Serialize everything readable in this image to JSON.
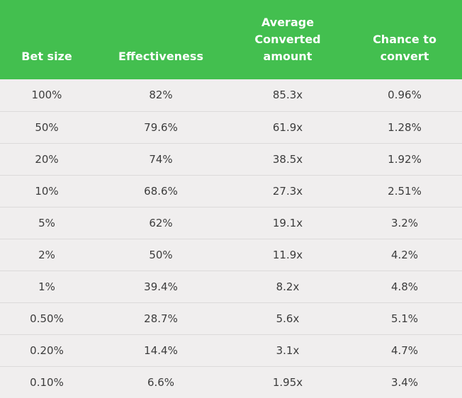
{
  "table": {
    "headers": [
      [
        "Bet size"
      ],
      [
        "Effectiveness"
      ],
      [
        "Average",
        "Converted",
        "amount"
      ],
      [
        "Chance to",
        "convert"
      ]
    ],
    "rows": [
      [
        "100%",
        "82%",
        "85.3x",
        "0.96%"
      ],
      [
        "50%",
        "79.6%",
        "61.9x",
        "1.28%"
      ],
      [
        "20%",
        "74%",
        "38.5x",
        "1.92%"
      ],
      [
        "10%",
        "68.6%",
        "27.3x",
        "2.51%"
      ],
      [
        "5%",
        "62%",
        "19.1x",
        "3.2%"
      ],
      [
        "2%",
        "50%",
        "11.9x",
        "4.2%"
      ],
      [
        "1%",
        "39.4%",
        "8.2x",
        "4.8%"
      ],
      [
        "0.50%",
        "28.7%",
        "5.6x",
        "5.1%"
      ],
      [
        "0.20%",
        "14.4%",
        "3.1x",
        "4.7%"
      ],
      [
        "0.10%",
        "6.6%",
        "1.95x",
        "3.4%"
      ]
    ]
  },
  "colors": {
    "header_background": "#43bf4f",
    "header_text": "#ffffff",
    "body_background": "#f0eeee",
    "body_text": "#3c3c3c",
    "row_divider": "#dcdada"
  }
}
